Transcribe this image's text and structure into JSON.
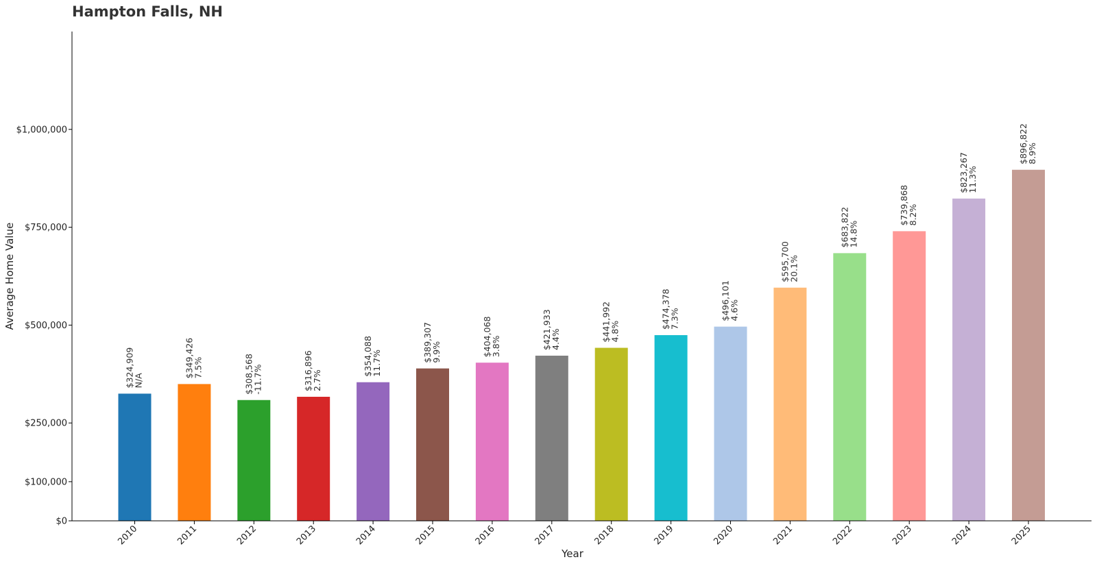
{
  "chart_data": {
    "type": "bar",
    "title": "Hampton Falls, NH",
    "xlabel": "Year",
    "ylabel": "Average Home Value",
    "ylim": [
      0,
      1250000
    ],
    "yticks": [
      0,
      100000,
      250000,
      500000,
      750000,
      1000000
    ],
    "ytick_labels": [
      "$0",
      "$100,000",
      "$250,000",
      "$500,000",
      "$750,000",
      "$1,000,000"
    ],
    "grid": false,
    "categories": [
      "2010",
      "2011",
      "2012",
      "2013",
      "2014",
      "2015",
      "2016",
      "2017",
      "2018",
      "2019",
      "2020",
      "2021",
      "2022",
      "2023",
      "2024",
      "2025"
    ],
    "values": [
      324909,
      349426,
      308568,
      316896,
      354088,
      389307,
      404068,
      421933,
      441992,
      474378,
      496101,
      595700,
      683822,
      739868,
      823267,
      896822
    ],
    "value_labels": [
      "$324,909",
      "$349,426",
      "$308,568",
      "$316,896",
      "$354,088",
      "$389,307",
      "$404,068",
      "$421,933",
      "$441,992",
      "$474,378",
      "$496,101",
      "$595,700",
      "$683,822",
      "$739,868",
      "$823,267",
      "$896,822"
    ],
    "change_labels": [
      "N/A",
      "7.5%",
      "-11.7%",
      "2.7%",
      "11.7%",
      "9.9%",
      "3.8%",
      "4.4%",
      "4.8%",
      "7.3%",
      "4.6%",
      "20.1%",
      "14.8%",
      "8.2%",
      "11.3%",
      "8.9%"
    ],
    "colors": [
      "#1f77b4",
      "#ff7f0e",
      "#2ca02c",
      "#d62728",
      "#9467bd",
      "#8c564b",
      "#e377c2",
      "#7f7f7f",
      "#bcbd22",
      "#17becf",
      "#aec7e8",
      "#ffbb78",
      "#98df8a",
      "#ff9896",
      "#c5b0d5",
      "#c49c94"
    ]
  }
}
